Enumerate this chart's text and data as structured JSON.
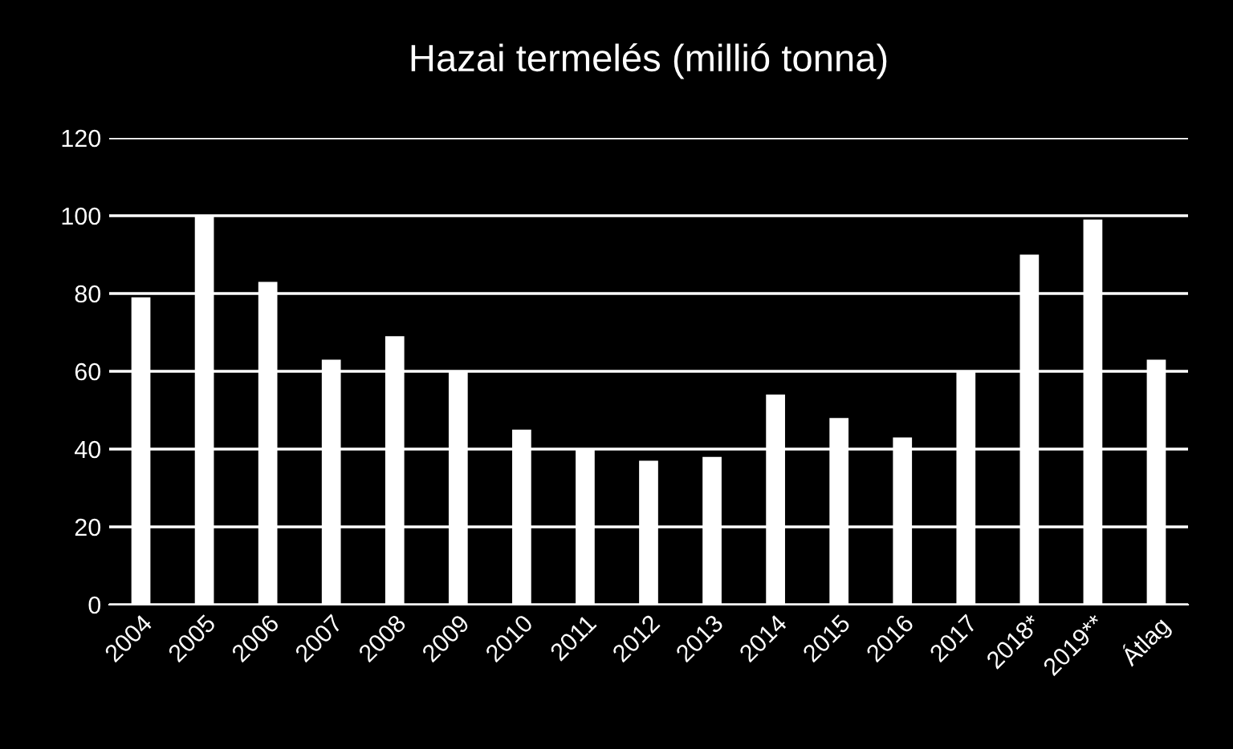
{
  "chart_data": {
    "type": "bar",
    "title": "Hazai termelés (millió tonna)",
    "categories": [
      "2004",
      "2005",
      "2006",
      "2007",
      "2008",
      "2009",
      "2010",
      "2011",
      "2012",
      "2013",
      "2014",
      "2015",
      "2016",
      "2017",
      "2018*",
      "2019**",
      "Átlag"
    ],
    "values": [
      79,
      100,
      83,
      63,
      69,
      60,
      45,
      40,
      37,
      38,
      54,
      48,
      43,
      60,
      90,
      99,
      63
    ],
    "color": "#ffffff",
    "ylim": [
      0,
      120
    ],
    "yticks": [
      0,
      20,
      40,
      60,
      80,
      100,
      120
    ],
    "grid": "y"
  }
}
